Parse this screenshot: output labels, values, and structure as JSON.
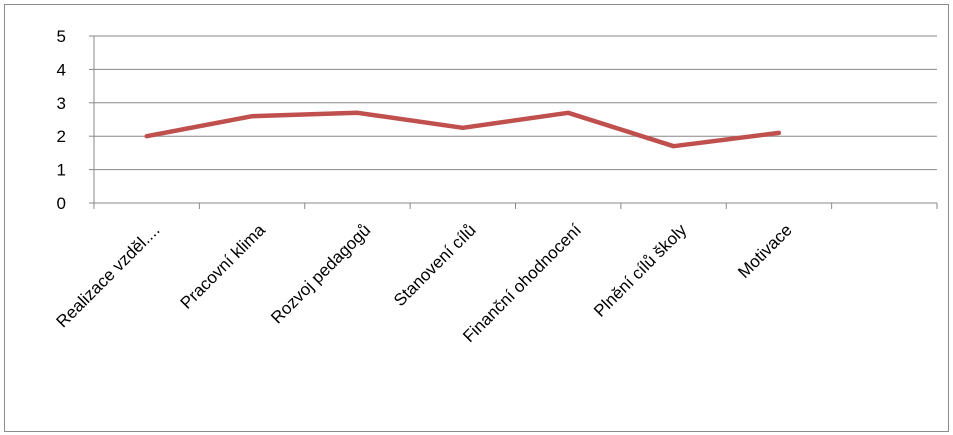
{
  "chart_data": {
    "type": "line",
    "title": "",
    "xlabel": "",
    "ylabel": "",
    "categories": [
      "Realizace vzděl....",
      "Pracovní klima",
      "Rozvoj pedagogů",
      "Stanovení cílů",
      "Finanční ohodnocení",
      "Plnění cílů školy",
      "Motivace"
    ],
    "category_slots": 8,
    "series": [
      {
        "values": [
          2.0,
          2.6,
          2.7,
          2.25,
          2.7,
          1.7,
          2.1
        ],
        "color": "#c0504d"
      }
    ],
    "ylim": [
      0,
      5
    ],
    "yticks": [
      0,
      1,
      2,
      3,
      4,
      5
    ],
    "grid": true,
    "legend": "none",
    "gridline_color": "#888888"
  }
}
